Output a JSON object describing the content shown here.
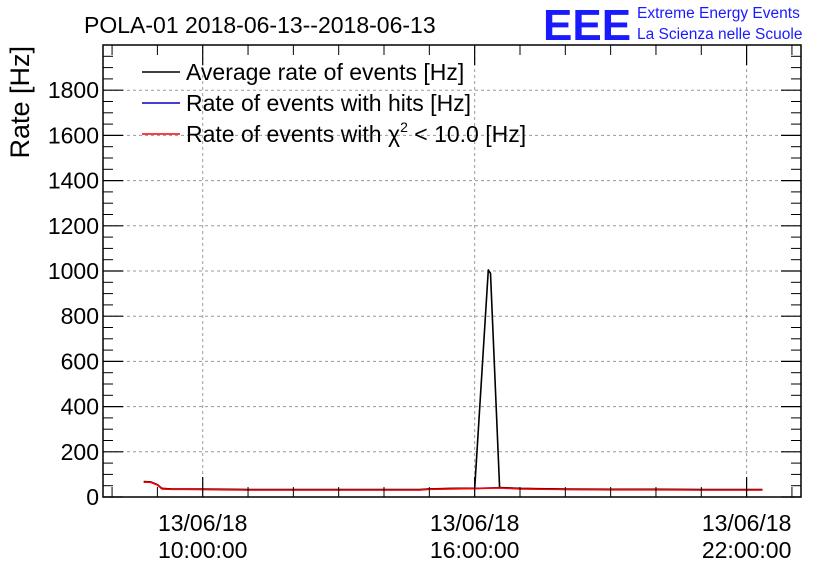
{
  "header": {
    "title": "POLA-01 2018-06-13--2018-06-13",
    "logo_text": "EEE",
    "org_line1": "Extreme Energy Events",
    "org_line2": "La Scienza nelle Scuole"
  },
  "colors": {
    "logo": "#1a1aff",
    "black": "#000000",
    "blue": "#0000cc",
    "red": "#ff0000",
    "grid": "#9a9a9a"
  },
  "chart_data": {
    "type": "line",
    "title": "POLA-01 2018-06-13--2018-06-13",
    "xlabel": "",
    "ylabel": "Rate [Hz]",
    "ylim": [
      0,
      2000
    ],
    "yticks": [
      0,
      200,
      400,
      600,
      800,
      1000,
      1200,
      1400,
      1600,
      1800
    ],
    "xlim_hours": [
      7.8,
      23.2
    ],
    "xticks": [
      {
        "hour": 10,
        "date": "13/06/18",
        "time": "10:00:00"
      },
      {
        "hour": 16,
        "date": "13/06/18",
        "time": "16:00:00"
      },
      {
        "hour": 22,
        "date": "13/06/18",
        "time": "22:00:00"
      }
    ],
    "grid": true,
    "legend_position": "top-left",
    "legend": [
      {
        "label": "Average rate of events [Hz]",
        "color": "#000000"
      },
      {
        "label": "Rate of events with hits [Hz]",
        "color": "#0000cc"
      },
      {
        "label_prefix": "Rate of events with ",
        "label_chi": "χ",
        "label_sup": "2",
        "label_suffix": " < 10.0 [Hz]",
        "color": "#ff0000"
      }
    ],
    "series": [
      {
        "name": "Average rate of events [Hz]",
        "color": "#000000",
        "x": [
          8.7,
          8.85,
          9.0,
          9.1,
          9.3,
          10.0,
          10.5,
          11.0,
          12.0,
          13.0,
          14.0,
          14.8,
          15.0,
          15.5,
          16.0,
          16.3,
          16.35,
          16.55,
          17.0,
          18.0,
          19.0,
          20.0,
          21.0,
          22.0,
          22.35
        ],
        "y": [
          68,
          67,
          55,
          38,
          36,
          35,
          34,
          33,
          33,
          33,
          33,
          33,
          36,
          38,
          39,
          1005,
          990,
          42,
          38,
          35,
          34,
          34,
          33,
          33,
          33
        ]
      },
      {
        "name": "Rate of events with hits [Hz]",
        "color": "#0000cc",
        "x": [
          8.7,
          8.85,
          9.0,
          9.1,
          9.3,
          10.0,
          10.5,
          11.0,
          12.0,
          13.0,
          14.0,
          14.8,
          15.0,
          15.5,
          16.0,
          16.3,
          16.55,
          17.0,
          18.0,
          19.0,
          20.0,
          21.0,
          22.0,
          22.35
        ],
        "y": [
          67,
          66,
          54,
          37,
          35,
          34,
          33,
          32,
          32,
          32,
          32,
          32,
          35,
          37,
          38,
          40,
          41,
          37,
          34,
          33,
          33,
          32,
          32,
          32
        ]
      },
      {
        "name": "Rate of events with χ2 < 10.0 [Hz]",
        "color": "#ff0000",
        "x": [
          8.7,
          8.85,
          9.0,
          9.1,
          9.3,
          10.0,
          10.5,
          11.0,
          12.0,
          13.0,
          14.0,
          14.8,
          15.0,
          15.5,
          16.0,
          16.3,
          16.55,
          17.0,
          18.0,
          19.0,
          20.0,
          21.0,
          22.0,
          22.35
        ],
        "y": [
          66,
          65,
          53,
          36,
          34,
          33,
          32,
          31,
          31,
          31,
          31,
          31,
          34,
          36,
          37,
          39,
          40,
          36,
          33,
          32,
          32,
          31,
          31,
          31
        ]
      }
    ]
  }
}
